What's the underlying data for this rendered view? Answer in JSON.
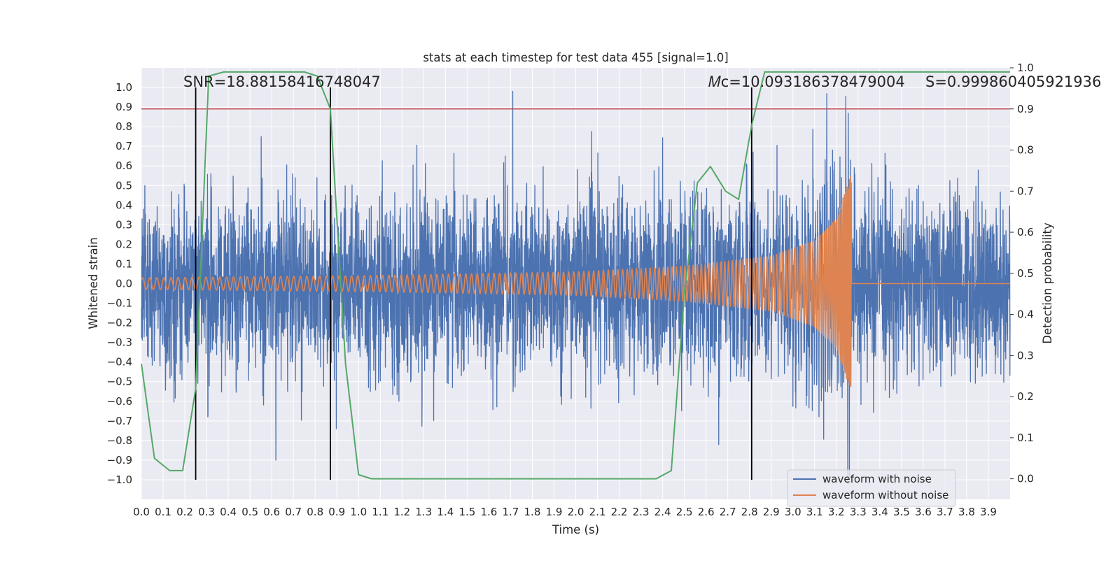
{
  "chart_data": {
    "type": "line",
    "title": "stats at each timestep for test data 455 [signal=1.0]",
    "xlabel": "Time (s)",
    "ylabel": "Whitened strain",
    "y2label": "Detection probability",
    "xlim": [
      0.0,
      4.0
    ],
    "ylim": [
      -1.1,
      1.1
    ],
    "y2lim": [
      -0.05,
      1.0
    ],
    "xticks": [
      "0.0",
      "0.1",
      "0.2",
      "0.3",
      "0.4",
      "0.5",
      "0.6",
      "0.7",
      "0.8",
      "0.9",
      "1.0",
      "1.1",
      "1.2",
      "1.3",
      "1.4",
      "1.5",
      "1.6",
      "1.7",
      "1.8",
      "1.9",
      "2.0",
      "2.1",
      "2.2",
      "2.3",
      "2.4",
      "2.5",
      "2.6",
      "2.7",
      "2.8",
      "2.9",
      "3.0",
      "3.1",
      "3.2",
      "3.3",
      "3.4",
      "3.5",
      "3.6",
      "3.7",
      "3.8",
      "3.9"
    ],
    "yticks": [
      "1.0",
      "0.9",
      "0.8",
      "0.7",
      "0.6",
      "0.5",
      "0.4",
      "0.3",
      "0.2",
      "0.1",
      "0.0",
      "−0.1",
      "−0.2",
      "−0.3",
      "−0.4",
      "−0.5",
      "−0.6",
      "−0.7",
      "−0.8",
      "−0.9",
      "−1.0"
    ],
    "y2ticks": [
      "1.0",
      "0.9",
      "0.8",
      "0.7",
      "0.6",
      "0.5",
      "0.4",
      "0.3",
      "0.2",
      "0.1",
      "0.0"
    ],
    "grid": true,
    "legend_position": "lower-right",
    "annotations": {
      "snr": "SNR=18.88158416748047",
      "mc": "𝑀ᴄ=10.093186378479004",
      "s": "S=0.999860405921936"
    },
    "threshold_line": {
      "y2": 0.9,
      "color": "#c44e52"
    },
    "vertical_lines": {
      "x": [
        0.25,
        0.87,
        2.81
      ],
      "color": "#000000"
    },
    "series": [
      {
        "name": "waveform with noise",
        "color": "#4c72b0",
        "description_values": {
          "noise_amplitude_typical": 0.35,
          "max_peak": {
            "x": 1.71,
            "y": 0.98
          },
          "min_peak": {
            "x": 3.26,
            "y": -0.98
          }
        }
      },
      {
        "name": "waveform without noise",
        "color": "#dd8452",
        "envelope": [
          {
            "x": 0.0,
            "a": 0.03
          },
          {
            "x": 1.0,
            "a": 0.04
          },
          {
            "x": 2.0,
            "a": 0.06
          },
          {
            "x": 2.5,
            "a": 0.09
          },
          {
            "x": 2.9,
            "a": 0.14
          },
          {
            "x": 3.1,
            "a": 0.22
          },
          {
            "x": 3.2,
            "a": 0.33
          },
          {
            "x": 3.265,
            "a": 0.55
          }
        ],
        "end_time": 3.27
      },
      {
        "name": "detection probability",
        "axis": "y2",
        "color": "#55a868",
        "x": [
          0.0,
          0.06,
          0.13,
          0.19,
          0.25,
          0.31,
          0.38,
          0.44,
          0.5,
          0.56,
          0.63,
          0.69,
          0.75,
          0.81,
          0.87,
          0.94,
          1.0,
          1.06,
          1.5,
          2.0,
          2.3,
          2.37,
          2.44,
          2.5,
          2.56,
          2.62,
          2.69,
          2.75,
          2.81,
          2.87,
          2.94,
          3.0,
          3.5,
          4.0
        ],
        "values": [
          0.28,
          0.05,
          0.02,
          0.02,
          0.22,
          0.98,
          0.99,
          0.99,
          0.99,
          0.99,
          0.99,
          0.99,
          0.99,
          0.98,
          0.9,
          0.28,
          0.01,
          0.0,
          0.0,
          0.0,
          0.0,
          0.0,
          0.02,
          0.45,
          0.72,
          0.76,
          0.7,
          0.68,
          0.86,
          0.99,
          0.99,
          0.99,
          0.99,
          0.99
        ]
      }
    ]
  },
  "legend": {
    "items": [
      {
        "label": "waveform with noise",
        "color": "#4c72b0"
      },
      {
        "label": "waveform without noise",
        "color": "#dd8452"
      }
    ]
  },
  "colors": {
    "axes_bg": "#eaeaf2",
    "grid": "#ffffff"
  }
}
